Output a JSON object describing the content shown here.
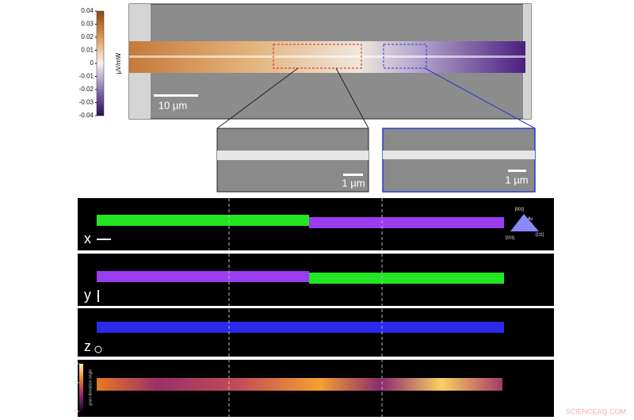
{
  "colorbar": {
    "label": "µV/mW",
    "lim": [
      -0.04,
      0.04
    ],
    "ticks": [
      0.04,
      0.03,
      0.02,
      0.01,
      0,
      -0.01,
      -0.02,
      -0.03,
      -0.04
    ]
  },
  "sem": {
    "scale_bar": "10 µm",
    "inset_left_scale": "1 µm",
    "inset_right_scale": "1 µm"
  },
  "ebsd": {
    "panels": [
      {
        "axis": "x"
      },
      {
        "axis": "y"
      },
      {
        "axis": "z"
      }
    ],
    "legend": {
      "top": "[001]",
      "material": "Au",
      "left": "[101]",
      "right": "[111]"
    },
    "grain_colorbar": {
      "label": "grain deviation angle",
      "lim": [
        0,
        5
      ],
      "ticks": [
        5,
        3,
        0
      ]
    }
  },
  "watermark": "SCIENCEAQ.COM"
}
